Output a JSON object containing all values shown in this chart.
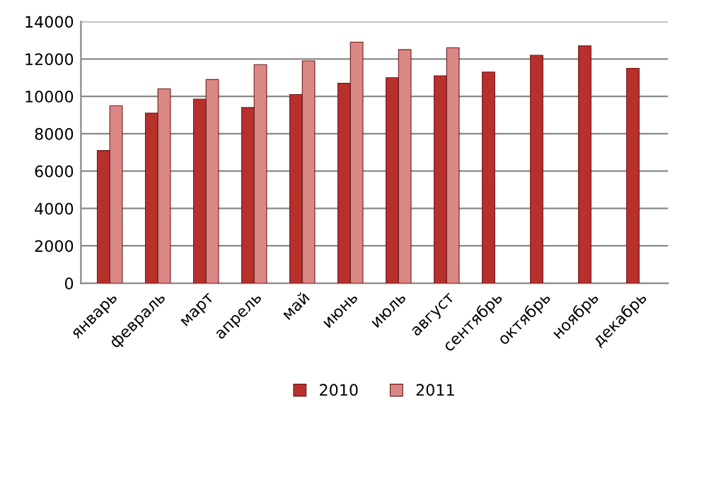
{
  "chart_data": {
    "type": "bar",
    "categories": [
      "январь",
      "февраль",
      "март",
      "апрель",
      "май",
      "июнь",
      "июль",
      "август",
      "сентябрь",
      "октябрь",
      "ноябрь",
      "декабрь"
    ],
    "series": [
      {
        "name": "2010",
        "color": "#b8302c",
        "values": [
          7100,
          9100,
          9850,
          9400,
          10100,
          10700,
          11000,
          11100,
          11300,
          12200,
          12700,
          11500
        ]
      },
      {
        "name": "2011",
        "color": "#d98886",
        "values": [
          9500,
          10400,
          10900,
          11700,
          11900,
          12900,
          12500,
          12600,
          null,
          null,
          null,
          null
        ]
      }
    ],
    "ylim": [
      0,
      14000
    ],
    "yticks": [
      0,
      2000,
      4000,
      6000,
      8000,
      10000,
      12000,
      14000
    ],
    "grid": "y",
    "legend": "bottom"
  }
}
